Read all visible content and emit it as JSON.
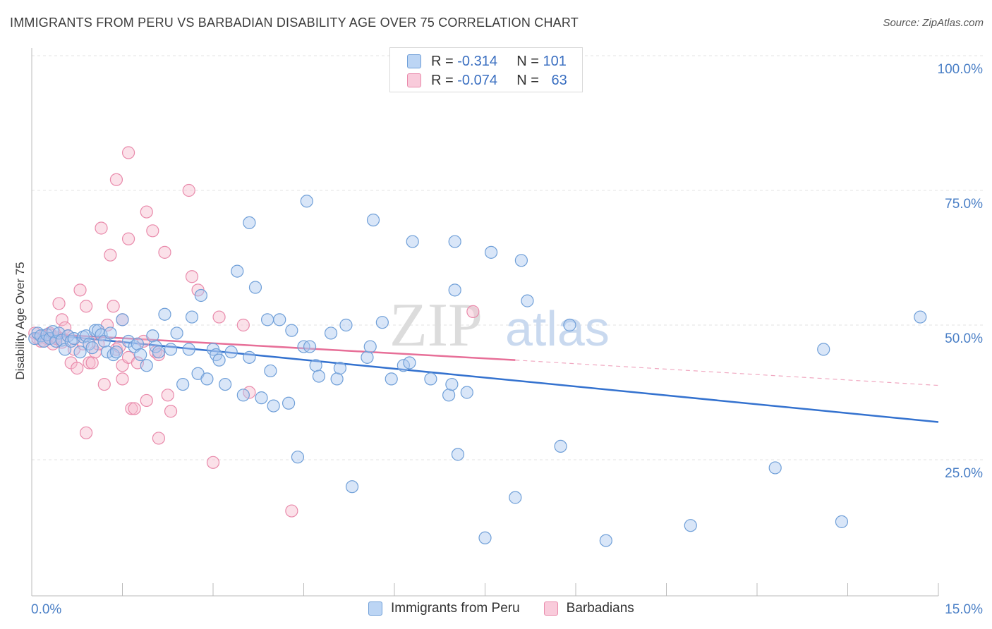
{
  "title": "IMMIGRANTS FROM PERU VS BARBADIAN DISABILITY AGE OVER 75 CORRELATION CHART",
  "source": "Source: ZipAtlas.com",
  "watermark": {
    "zip": "ZIP",
    "atlas": "atlas"
  },
  "legend": {
    "r_label": "R =",
    "n_label": "N =",
    "rows": [
      {
        "r": "-0.314",
        "n": "101"
      },
      {
        "r": "-0.074",
        "n": "63"
      }
    ]
  },
  "colors": {
    "blue_fill": "#aac8ef",
    "blue_stroke": "#6f9fd8",
    "blue_line": "#3472cf",
    "pink_fill": "#f6bccf",
    "pink_stroke": "#e98aab",
    "pink_line": "#e76f98",
    "axis_text": "#4a7fc6"
  },
  "chart_data": {
    "type": "scatter",
    "title": "IMMIGRANTS FROM PERU VS BARBADIAN DISABILITY AGE OVER 75 CORRELATION CHART",
    "ylabel": "Disability Age Over 75",
    "xlabel": "",
    "xlim": [
      0,
      15
    ],
    "ylim": [
      0,
      105
    ],
    "x_tick_labels": [
      "0.0%",
      "15.0%"
    ],
    "y_tick_labels": [
      "100.0%",
      "75.0%",
      "50.0%",
      "25.0%"
    ],
    "y_ticks": [
      100,
      75,
      50,
      25
    ],
    "grid": "horizontal dashed",
    "legend_position": "bottom-center",
    "series": [
      {
        "name": "Immigrants from Peru",
        "R": -0.314,
        "N": 101,
        "trend": {
          "x": [
            0,
            15
          ],
          "y": [
            48.5,
            32
          ]
        },
        "points": [
          [
            0.05,
            47.5
          ],
          [
            0.1,
            48.5
          ],
          [
            0.15,
            48
          ],
          [
            0.2,
            47
          ],
          [
            0.25,
            48.2
          ],
          [
            0.3,
            47.5
          ],
          [
            0.35,
            48.8
          ],
          [
            0.4,
            47
          ],
          [
            0.45,
            48.5
          ],
          [
            0.5,
            47.2
          ],
          [
            0.55,
            45.5
          ],
          [
            0.6,
            48
          ],
          [
            0.65,
            47
          ],
          [
            0.7,
            47.5
          ],
          [
            0.8,
            45
          ],
          [
            0.85,
            47.8
          ],
          [
            0.9,
            48
          ],
          [
            0.95,
            46.5
          ],
          [
            1.0,
            45.8
          ],
          [
            1.05,
            49
          ],
          [
            1.1,
            49
          ],
          [
            1.15,
            48.2
          ],
          [
            1.2,
            47
          ],
          [
            1.25,
            45
          ],
          [
            1.3,
            48.5
          ],
          [
            1.35,
            44.5
          ],
          [
            1.4,
            45
          ],
          [
            1.5,
            51
          ],
          [
            1.6,
            47
          ],
          [
            1.7,
            46
          ],
          [
            1.75,
            46.5
          ],
          [
            1.8,
            44.5
          ],
          [
            1.9,
            42.5
          ],
          [
            2.0,
            48
          ],
          [
            2.05,
            46
          ],
          [
            2.1,
            45
          ],
          [
            2.2,
            52
          ],
          [
            2.3,
            45.5
          ],
          [
            2.4,
            48.5
          ],
          [
            2.5,
            39
          ],
          [
            2.6,
            45.5
          ],
          [
            2.65,
            51.5
          ],
          [
            2.75,
            41
          ],
          [
            2.8,
            55.5
          ],
          [
            2.9,
            40
          ],
          [
            3.0,
            45.5
          ],
          [
            3.05,
            44.5
          ],
          [
            3.1,
            43.5
          ],
          [
            3.2,
            39
          ],
          [
            3.3,
            45
          ],
          [
            3.4,
            60
          ],
          [
            3.5,
            37
          ],
          [
            3.6,
            44
          ],
          [
            3.6,
            69
          ],
          [
            3.7,
            57
          ],
          [
            3.8,
            36.5
          ],
          [
            3.9,
            51
          ],
          [
            3.95,
            41.5
          ],
          [
            4.0,
            35
          ],
          [
            4.1,
            51
          ],
          [
            4.25,
            35.5
          ],
          [
            4.3,
            49
          ],
          [
            4.4,
            25.5
          ],
          [
            4.5,
            46
          ],
          [
            4.55,
            73
          ],
          [
            4.6,
            46
          ],
          [
            4.7,
            42.5
          ],
          [
            4.75,
            40.5
          ],
          [
            4.95,
            48.5
          ],
          [
            5.05,
            40
          ],
          [
            5.1,
            42
          ],
          [
            5.2,
            50
          ],
          [
            5.3,
            20
          ],
          [
            5.55,
            44
          ],
          [
            5.6,
            46
          ],
          [
            5.65,
            69.5
          ],
          [
            5.8,
            50.5
          ],
          [
            5.95,
            40
          ],
          [
            6.15,
            42.5
          ],
          [
            6.25,
            43
          ],
          [
            6.3,
            65.5
          ],
          [
            6.6,
            40
          ],
          [
            6.9,
            37
          ],
          [
            6.95,
            39
          ],
          [
            7.0,
            56.5
          ],
          [
            7.0,
            65.5
          ],
          [
            7.05,
            26
          ],
          [
            7.2,
            37.5
          ],
          [
            7.5,
            10.5
          ],
          [
            7.6,
            63.5
          ],
          [
            8.0,
            18
          ],
          [
            8.1,
            62
          ],
          [
            8.2,
            54.5
          ],
          [
            8.75,
            27.5
          ],
          [
            8.9,
            50
          ],
          [
            9.5,
            10
          ],
          [
            10.9,
            12.8
          ],
          [
            12.3,
            23.5
          ],
          [
            13.1,
            45.5
          ],
          [
            13.4,
            13.5
          ],
          [
            14.7,
            51.5
          ]
        ]
      },
      {
        "name": "Barbadians",
        "R": -0.074,
        "N": 63,
        "trend": {
          "x": [
            0,
            8
          ],
          "y": [
            48.5,
            43.5
          ]
        },
        "trend_dashed": {
          "x": [
            8,
            15
          ],
          "y": [
            43.5,
            38.8
          ]
        },
        "points": [
          [
            0.05,
            48.5
          ],
          [
            0.1,
            47.5
          ],
          [
            0.15,
            47
          ],
          [
            0.2,
            48
          ],
          [
            0.25,
            47.5
          ],
          [
            0.3,
            48.5
          ],
          [
            0.35,
            46.5
          ],
          [
            0.4,
            47.5
          ],
          [
            0.45,
            54
          ],
          [
            0.5,
            51
          ],
          [
            0.55,
            49.5
          ],
          [
            0.6,
            48
          ],
          [
            0.65,
            43
          ],
          [
            0.7,
            45.5
          ],
          [
            0.75,
            42
          ],
          [
            0.8,
            56.5
          ],
          [
            0.85,
            46.5
          ],
          [
            0.9,
            30
          ],
          [
            0.9,
            53.5
          ],
          [
            0.95,
            43
          ],
          [
            1.0,
            43
          ],
          [
            1.05,
            45
          ],
          [
            1.1,
            46.5
          ],
          [
            1.15,
            68
          ],
          [
            1.2,
            39
          ],
          [
            1.25,
            50
          ],
          [
            1.3,
            63
          ],
          [
            1.35,
            53.5
          ],
          [
            1.4,
            45.5
          ],
          [
            1.4,
            77
          ],
          [
            1.45,
            46
          ],
          [
            1.5,
            51
          ],
          [
            1.5,
            42.5
          ],
          [
            1.5,
            40
          ],
          [
            1.6,
            82
          ],
          [
            1.6,
            44
          ],
          [
            1.6,
            66
          ],
          [
            1.65,
            34.5
          ],
          [
            1.7,
            34.5
          ],
          [
            1.75,
            43
          ],
          [
            1.85,
            47
          ],
          [
            1.9,
            36
          ],
          [
            1.9,
            71
          ],
          [
            2.0,
            67.5
          ],
          [
            2.05,
            45
          ],
          [
            2.1,
            29
          ],
          [
            2.1,
            44.5
          ],
          [
            2.2,
            63.5
          ],
          [
            2.25,
            37
          ],
          [
            2.3,
            34
          ],
          [
            2.6,
            75
          ],
          [
            2.65,
            59
          ],
          [
            2.75,
            56.5
          ],
          [
            3.0,
            24.5
          ],
          [
            3.1,
            51.5
          ],
          [
            3.5,
            50
          ],
          [
            3.6,
            37.5
          ],
          [
            4.3,
            15.5
          ],
          [
            7.3,
            52.5
          ],
          [
            0.2,
            47
          ],
          [
            0.3,
            48.2
          ],
          [
            0.4,
            47.8
          ],
          [
            0.5,
            46.8
          ]
        ]
      }
    ]
  }
}
